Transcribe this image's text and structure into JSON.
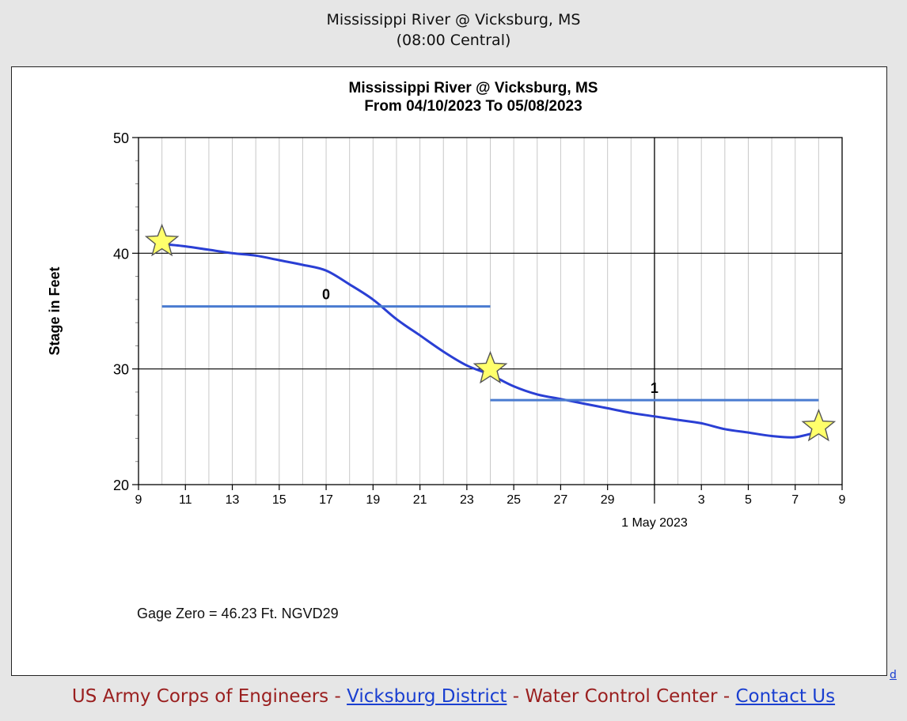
{
  "header": {
    "title": "Mississippi River @ Vicksburg, MS",
    "subtitle": "(08:00 Central)"
  },
  "footer": {
    "org": "US Army Corps of Engineers",
    "sep1": " - ",
    "district_link": "Vicksburg District",
    "sep2": " - ",
    "center": "Water Control Center",
    "sep3": " - ",
    "contact_link": "Contact Us"
  },
  "corner_link": "d",
  "chart_data": {
    "type": "line",
    "title": "Mississippi River @ Vicksburg, MS",
    "subtitle": "From 04/10/2023 To 05/08/2023",
    "ylabel": "Stage in Feet",
    "xlabel": "",
    "month_label": "1 May 2023",
    "ylim": [
      20,
      50
    ],
    "y_ticks": [
      20,
      30,
      40,
      50
    ],
    "xlim": [
      "2023-04-09",
      "2023-05-09"
    ],
    "x_tick_labels": [
      "9",
      "11",
      "13",
      "15",
      "17",
      "19",
      "21",
      "23",
      "25",
      "27",
      "29",
      "",
      "3",
      "5",
      "7",
      "9"
    ],
    "x_tick_dates": [
      "2023-04-09",
      "2023-04-11",
      "2023-04-13",
      "2023-04-15",
      "2023-04-17",
      "2023-04-19",
      "2023-04-21",
      "2023-04-23",
      "2023-04-25",
      "2023-04-27",
      "2023-04-29",
      "2023-05-01",
      "2023-05-03",
      "2023-05-05",
      "2023-05-07",
      "2023-05-09"
    ],
    "grid": true,
    "line_color": "#2a3fd4",
    "series": [
      {
        "x": [
          "2023-04-10",
          "2023-04-11",
          "2023-04-12",
          "2023-04-13",
          "2023-04-14",
          "2023-04-15",
          "2023-04-16",
          "2023-04-17",
          "2023-04-18",
          "2023-04-19",
          "2023-04-20",
          "2023-04-21",
          "2023-04-22",
          "2023-04-23",
          "2023-04-24",
          "2023-04-25",
          "2023-04-26",
          "2023-04-27",
          "2023-04-28",
          "2023-04-29",
          "2023-04-30",
          "2023-05-01",
          "2023-05-02",
          "2023-05-03",
          "2023-05-04",
          "2023-05-05",
          "2023-05-06",
          "2023-05-07",
          "2023-05-08"
        ],
        "y": [
          40.8,
          40.6,
          40.3,
          40.0,
          39.8,
          39.4,
          39.0,
          38.5,
          37.3,
          36.0,
          34.3,
          32.9,
          31.5,
          30.3,
          29.5,
          28.5,
          27.8,
          27.4,
          27.0,
          26.6,
          26.2,
          25.9,
          25.6,
          25.3,
          24.8,
          24.5,
          24.2,
          24.1,
          24.6
        ]
      }
    ],
    "annotations": {
      "stars": [
        {
          "x": "2023-04-10",
          "y": 41.0
        },
        {
          "x": "2023-04-24",
          "y": 30.0
        },
        {
          "x": "2023-05-08",
          "y": 25.0
        }
      ],
      "mean_lines": [
        {
          "label": "0",
          "x_start": "2023-04-10",
          "x_end": "2023-04-24",
          "y": 35.4,
          "color": "#4a7bd0"
        },
        {
          "label": "1",
          "x_start": "2023-04-24",
          "x_end": "2023-05-08",
          "y": 27.3,
          "color": "#4a7bd0"
        }
      ]
    },
    "footnote": "Gage Zero = 46.23 Ft. NGVD29"
  }
}
